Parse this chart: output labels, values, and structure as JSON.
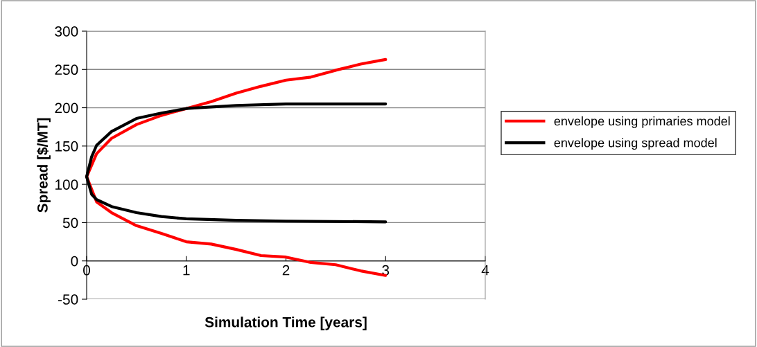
{
  "chart_data": {
    "type": "line",
    "xlabel": "Simulation Time [years]",
    "ylabel": "Spread [$/MT]",
    "xlim": [
      0,
      4
    ],
    "xticks": [
      0,
      1,
      2,
      3,
      4
    ],
    "ylim": [
      -50,
      300
    ],
    "yticks": [
      -50,
      0,
      50,
      100,
      150,
      200,
      250,
      300
    ],
    "grid": "y",
    "legend": "right",
    "marker": "none",
    "line_style": "solid",
    "series": [
      {
        "name": "envelope using primaries model",
        "color": "#ff0000",
        "x": [
          0,
          0.1,
          0.25,
          0.5,
          0.75,
          1,
          1.25,
          1.5,
          1.75,
          2,
          2.25,
          2.5,
          2.75,
          3
        ],
        "values": [
          110,
          140,
          160,
          178,
          190,
          199,
          208,
          219,
          228,
          236,
          240,
          249,
          257,
          263
        ]
      },
      {
        "color": "#ff0000",
        "x": [
          0,
          0.1,
          0.25,
          0.5,
          0.75,
          1,
          1.25,
          1.5,
          1.75,
          2,
          2.25,
          2.5,
          2.75,
          3
        ],
        "values": [
          110,
          77,
          63,
          46,
          36,
          25,
          22,
          15,
          7,
          5,
          -2,
          -5,
          -13,
          -19
        ]
      },
      {
        "name": "envelope using spread model",
        "color": "#000000",
        "x": [
          0,
          0.05,
          0.1,
          0.25,
          0.5,
          0.75,
          1,
          1.5,
          2,
          3
        ],
        "values": [
          110,
          136,
          151,
          169,
          186,
          193,
          199,
          203,
          205,
          205
        ]
      },
      {
        "color": "#000000",
        "x": [
          0,
          0.05,
          0.1,
          0.25,
          0.5,
          0.75,
          1,
          1.5,
          2,
          3
        ],
        "values": [
          110,
          87,
          80,
          71,
          63,
          58,
          55,
          53,
          52,
          51
        ]
      }
    ]
  }
}
